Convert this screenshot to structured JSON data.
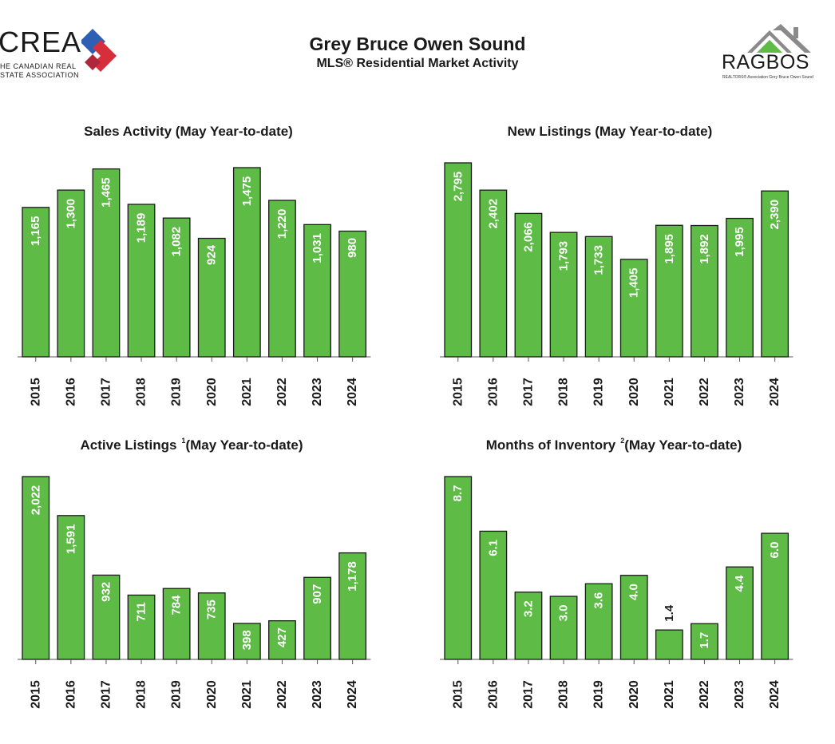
{
  "header": {
    "title": "Grey Bruce Owen Sound",
    "subtitle": "MLS® Residential Market Activity"
  },
  "logos": {
    "crea": {
      "word": "CREA",
      "line1": "HE CANADIAN REAL",
      "line2": "STATE ASSOCIATION",
      "colors": [
        "#2f5fb3",
        "#d62e3a"
      ]
    },
    "ragbos": {
      "word": "RAGBOS",
      "tagline": "REALTORS® Association Grey Bruce Owen Sound",
      "roof_color": "#8a8a8a",
      "accent_color": "#5dbb46"
    }
  },
  "colors": {
    "bar": "#5dbb46",
    "label_inside": "#ffffff",
    "label_outside": "#1a1a1a"
  },
  "chart_data": [
    {
      "type": "bar",
      "title": "Sales Activity (May Year-to-date)",
      "title_sup": "",
      "title_sup_after": "",
      "categories": [
        "2015",
        "2016",
        "2017",
        "2018",
        "2019",
        "2020",
        "2021",
        "2022",
        "2023",
        "2024"
      ],
      "values": [
        1165,
        1300,
        1465,
        1189,
        1082,
        924,
        1475,
        1220,
        1031,
        980
      ],
      "labels": [
        "1,165",
        "1,300",
        "1,465",
        "1,189",
        "1,082",
        "924",
        "1,475",
        "1,220",
        "1,031",
        "980"
      ],
      "ylim": [
        0,
        1475
      ]
    },
    {
      "type": "bar",
      "title": "New Listings (May Year-to-date)",
      "title_sup": "",
      "title_sup_after": "",
      "categories": [
        "2015",
        "2016",
        "2017",
        "2018",
        "2019",
        "2020",
        "2021",
        "2022",
        "2023",
        "2024"
      ],
      "values": [
        2795,
        2402,
        2066,
        1793,
        1733,
        1405,
        1895,
        1892,
        1995,
        2390
      ],
      "labels": [
        "2,795",
        "2,402",
        "2,066",
        "1,793",
        "1,733",
        "1,405",
        "1,895",
        "1,892",
        "1,995",
        "2,390"
      ],
      "ylim": [
        0,
        2795
      ]
    },
    {
      "type": "bar",
      "title": "Active Listings",
      "title_sup": "1",
      "title_sup_after": "(May Year-to-date)",
      "categories": [
        "2015",
        "2016",
        "2017",
        "2018",
        "2019",
        "2020",
        "2021",
        "2022",
        "2023",
        "2024"
      ],
      "values": [
        2022,
        1591,
        932,
        711,
        784,
        735,
        398,
        427,
        907,
        1178
      ],
      "labels": [
        "2,022",
        "1,591",
        "932",
        "711",
        "784",
        "735",
        "398",
        "427",
        "907",
        "1,178"
      ],
      "ylim": [
        0,
        2022
      ]
    },
    {
      "type": "bar",
      "title": "Months of Inventory",
      "title_sup": "2",
      "title_sup_after": "(May Year-to-date)",
      "categories": [
        "2015",
        "2016",
        "2017",
        "2018",
        "2019",
        "2020",
        "2021",
        "2022",
        "2023",
        "2024"
      ],
      "values": [
        8.7,
        6.1,
        3.2,
        3.0,
        3.6,
        4.0,
        1.4,
        1.7,
        4.4,
        6.0
      ],
      "labels": [
        "8.7",
        "6.1",
        "3.2",
        "3.0",
        "3.6",
        "4.0",
        "1.4",
        "1.7",
        "4.4",
        "6.0"
      ],
      "ylim": [
        0,
        8.7
      ]
    }
  ]
}
